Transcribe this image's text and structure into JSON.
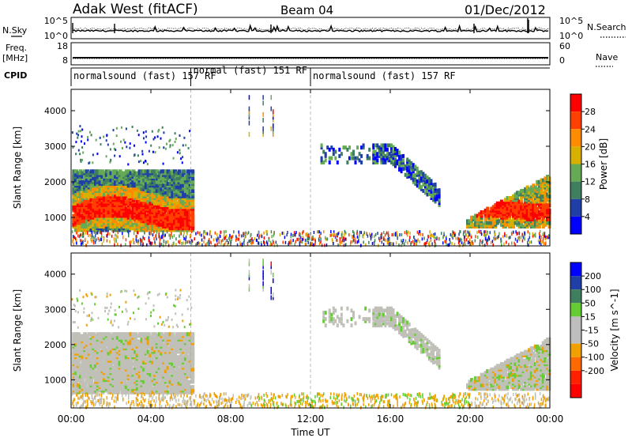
{
  "header": {
    "station": "Adak West (fitACF)",
    "beam": "Beam 04",
    "date": "01/Dec/2012"
  },
  "left_labels": {
    "nsky": "N.Sky",
    "freq": "Freq.",
    "freq_unit": "[MHz]",
    "cpid": "CPID"
  },
  "right_labels": {
    "nsearch": "N.Search",
    "nave": "Nave"
  },
  "cpid_segments": [
    {
      "label": "normalsound (fast) 157 RF",
      "start_h": 0,
      "end_h": 6
    },
    {
      "label": "normal (fast) 151 RF",
      "start_h": 6,
      "end_h": 12
    },
    {
      "label": "normalsound (fast) 157 RF",
      "start_h": 12,
      "end_h": 24
    }
  ],
  "noise_panel": {
    "ytick_top": "10^5",
    "ytick_bottom": "10^0",
    "rtick_top": "10^5",
    "rtick_bottom": "10^0"
  },
  "freq_panel": {
    "ytick_top": "18",
    "ytick_bottom": "8",
    "rtick_top": "60",
    "rtick_bottom": "0"
  },
  "colors": {
    "power_scale": [
      "#0000ff",
      "#1f3fa6",
      "#3f7f5f",
      "#66aa55",
      "#d8b000",
      "#ff8c00",
      "#ff4000",
      "#ff0000"
    ],
    "velocity_scale": [
      "#0000ff",
      "#1f3fa6",
      "#3f7f5f",
      "#66cc33",
      "#bebebe",
      "#bebebe",
      "#f0a000",
      "#ff6a00",
      "#ff2000",
      "#ff0000"
    ]
  },
  "chart_data": [
    {
      "type": "heatmap",
      "title": "",
      "xlabel": "",
      "ylabel": "Slant Range [km]",
      "xlim": [
        0,
        24
      ],
      "ylim": [
        200,
        4600
      ],
      "yticks": [
        "1000",
        "2000",
        "3000",
        "4000"
      ],
      "colorbar": {
        "label": "Power [dB]",
        "ticks": [
          "4",
          "8",
          "12",
          "16",
          "20",
          "24",
          "28"
        ],
        "range": [
          0,
          32
        ]
      }
    },
    {
      "type": "heatmap",
      "title": "",
      "xlabel": "Time UT",
      "ylabel": "Slant Range [km]",
      "xlim": [
        0,
        24
      ],
      "ylim": [
        200,
        4600
      ],
      "xticks": [
        "00:00",
        "04:00",
        "08:00",
        "12:00",
        "16:00",
        "20:00",
        "00:00"
      ],
      "yticks": [
        "1000",
        "2000",
        "3000",
        "4000"
      ],
      "colorbar": {
        "label": "Velocity [m s^-1]",
        "ticks": [
          "200",
          "100",
          "50",
          "15",
          "-15",
          "-50",
          "-100",
          "-200"
        ]
      }
    }
  ]
}
